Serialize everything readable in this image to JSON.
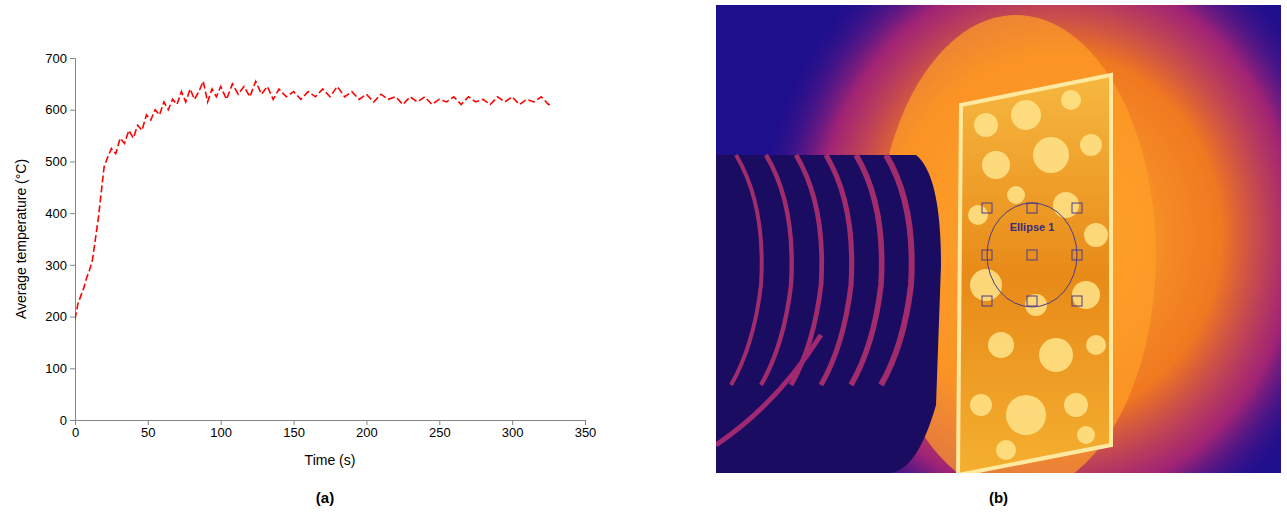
{
  "chart_data": {
    "type": "line",
    "x_label": "Time (s)",
    "y_label": "Average temperature (°C)",
    "x": [
      0,
      2,
      4,
      6,
      8,
      10,
      12,
      14,
      16,
      18,
      20,
      22,
      25,
      28,
      31,
      34,
      37,
      40,
      43,
      46,
      49,
      52,
      55,
      58,
      61,
      64,
      67,
      70,
      73,
      76,
      79,
      82,
      85,
      88,
      91,
      94,
      97,
      100,
      104,
      108,
      112,
      116,
      120,
      124,
      128,
      132,
      136,
      140,
      145,
      150,
      155,
      160,
      165,
      170,
      175,
      180,
      185,
      190,
      195,
      200,
      205,
      210,
      215,
      220,
      225,
      230,
      235,
      240,
      245,
      250,
      255,
      260,
      265,
      270,
      275,
      280,
      285,
      290,
      295,
      300,
      305,
      310,
      315,
      320,
      325,
      328
    ],
    "values": [
      195,
      225,
      240,
      255,
      275,
      290,
      310,
      350,
      390,
      440,
      490,
      505,
      525,
      515,
      545,
      535,
      560,
      545,
      570,
      560,
      590,
      580,
      600,
      590,
      615,
      600,
      620,
      610,
      635,
      615,
      640,
      620,
      635,
      655,
      615,
      640,
      625,
      645,
      620,
      650,
      630,
      645,
      625,
      655,
      630,
      645,
      620,
      640,
      625,
      635,
      620,
      635,
      625,
      640,
      625,
      645,
      625,
      635,
      620,
      630,
      615,
      630,
      620,
      625,
      610,
      625,
      615,
      625,
      610,
      620,
      615,
      625,
      610,
      625,
      615,
      620,
      610,
      625,
      615,
      625,
      610,
      620,
      615,
      625,
      610,
      612
    ],
    "color": "#ff0000",
    "line_style": "dashed",
    "xlim": [
      0,
      350
    ],
    "xticks": [
      0,
      50,
      100,
      150,
      200,
      250,
      300,
      350
    ],
    "ylim": [
      0,
      700
    ],
    "yticks": [
      0,
      100,
      200,
      300,
      400,
      500,
      600,
      700
    ],
    "grid": false
  },
  "panels": {
    "a": "(a)",
    "b": "(b)"
  },
  "thermal_image": {
    "annotation": "Ellipse 1"
  }
}
